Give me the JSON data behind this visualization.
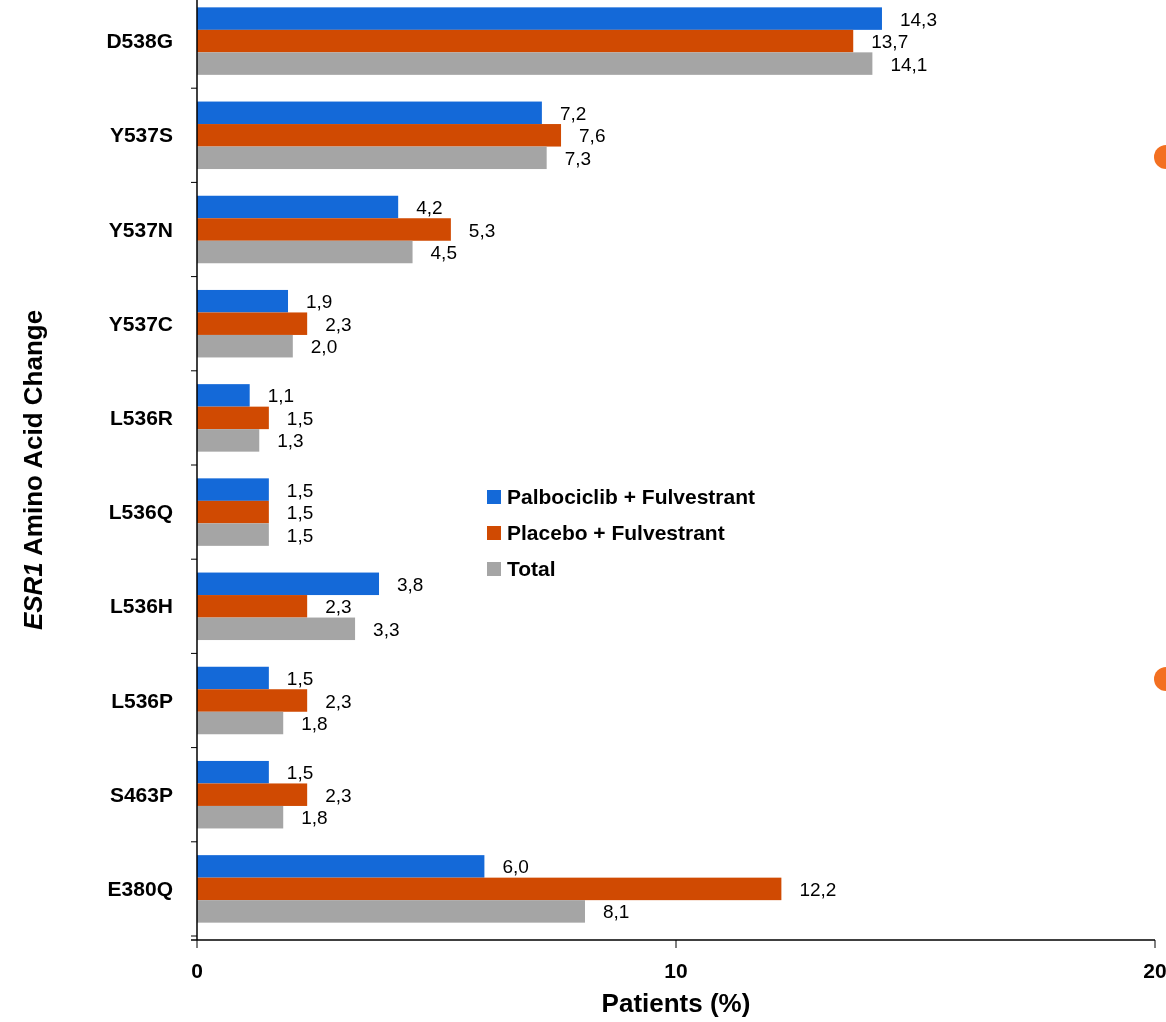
{
  "chart_data": {
    "type": "bar",
    "orientation": "horizontal",
    "xlabel": "Patients (%)",
    "ylabel": "ESR1 Amino Acid Change",
    "categories": [
      "D538G",
      "Y537S",
      "Y537N",
      "Y537C",
      "L536R",
      "L536Q",
      "L536H",
      "L536P",
      "S463P",
      "E380Q"
    ],
    "xlim": [
      0,
      20
    ],
    "xticks": [
      0,
      10,
      20
    ],
    "grid": false,
    "legend": "center",
    "series": [
      {
        "name": "Palbociclib + Fulvestrant",
        "color": "#1469d8",
        "values": [
          14.3,
          7.2,
          4.2,
          1.9,
          1.1,
          1.5,
          3.8,
          1.5,
          1.5,
          6.0
        ],
        "value_labels": [
          "14,3",
          "7,2",
          "4,2",
          "1,9",
          "1,1",
          "1,5",
          "3,8",
          "1,5",
          "1,5",
          "6,0"
        ]
      },
      {
        "name": "Placebo + Fulvestrant",
        "color": "#d04a02",
        "values": [
          13.7,
          7.6,
          5.3,
          2.3,
          1.5,
          1.5,
          2.3,
          2.3,
          2.3,
          12.2
        ],
        "value_labels": [
          "13,7",
          "7,6",
          "5,3",
          "2,3",
          "1,5",
          "1,5",
          "2,3",
          "2,3",
          "2,3",
          "12,2"
        ]
      },
      {
        "name": "Total",
        "color": "#a5a5a5",
        "values": [
          14.1,
          7.3,
          4.5,
          2.0,
          1.3,
          1.5,
          3.3,
          1.8,
          1.8,
          8.1
        ],
        "value_labels": [
          "14,1",
          "7,3",
          "4,5",
          "2,0",
          "1,3",
          "1,5",
          "3,3",
          "1,8",
          "1,8",
          "8,1"
        ]
      }
    ]
  }
}
